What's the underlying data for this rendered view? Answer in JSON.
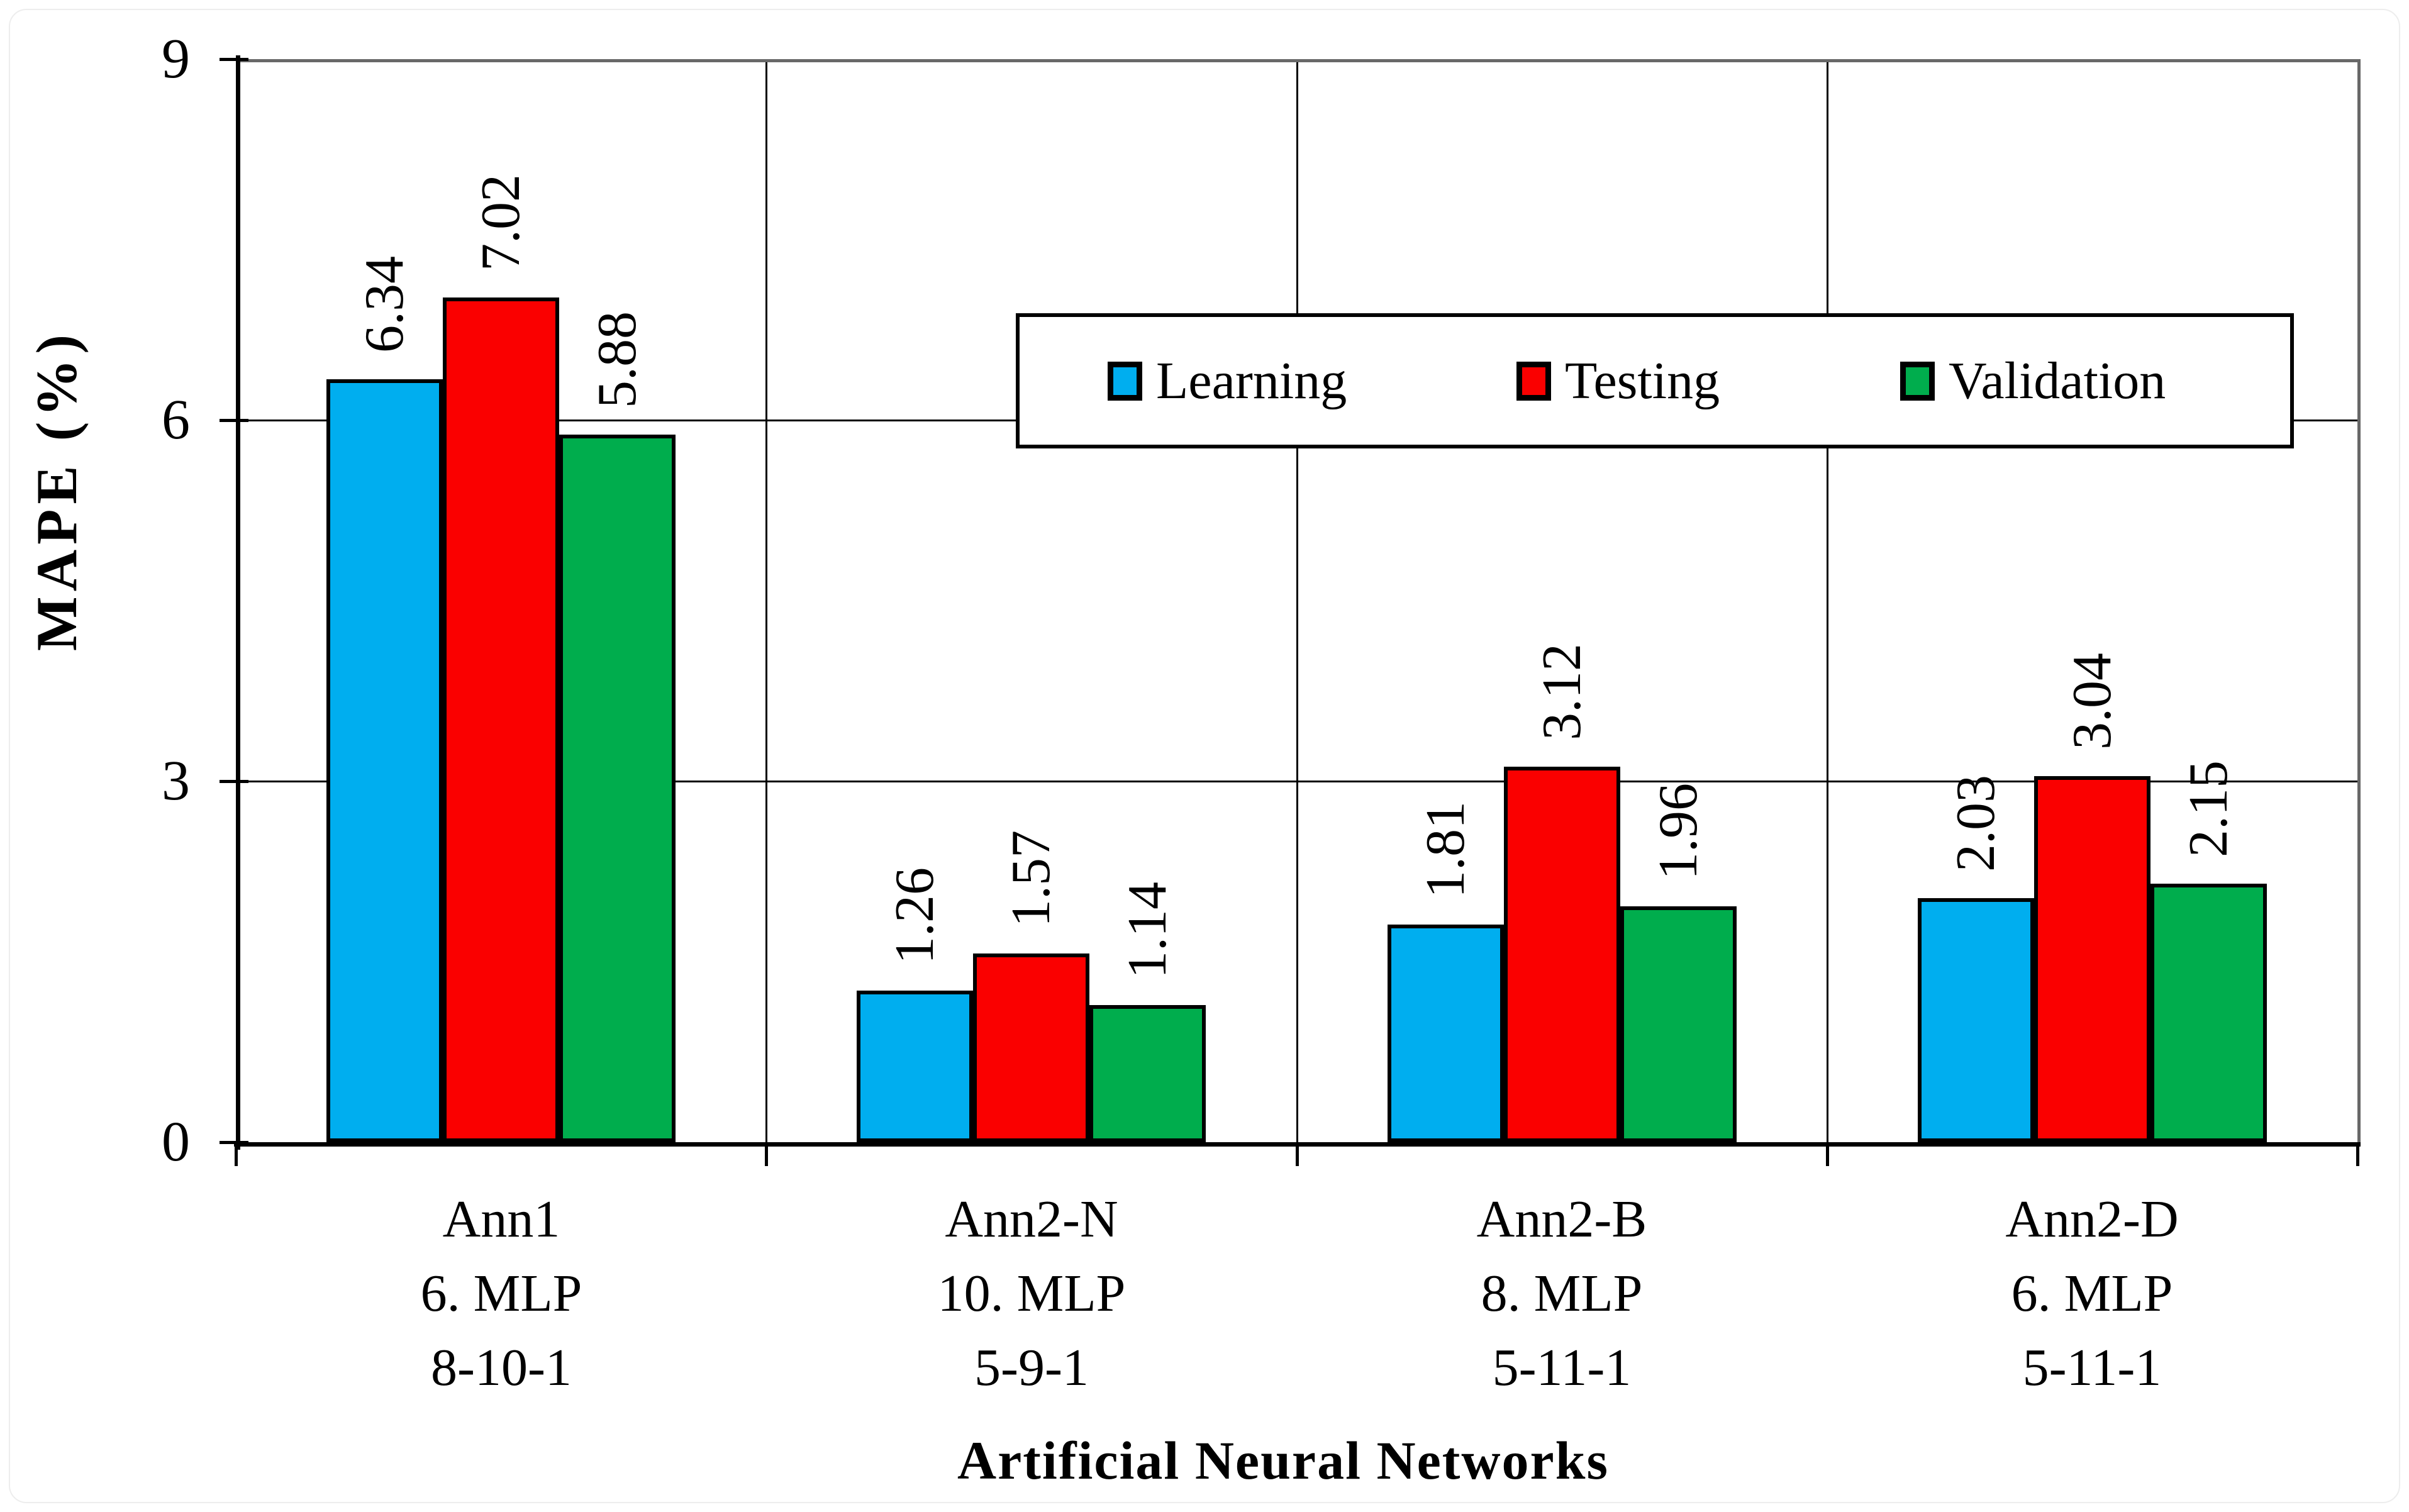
{
  "chart_data": {
    "type": "bar",
    "title": "",
    "xlabel": "Artificial Neural Networks",
    "ylabel": "MAPE (%)",
    "ylim": [
      0,
      9
    ],
    "yticks": [
      0,
      3,
      6,
      9
    ],
    "grid": "horizontal lines at 3 and 6, vertical separators between category groups",
    "legend_position": "overlay top-center inside plot",
    "value_label_format": "two decimals, rotated 90 degrees",
    "categories": [
      [
        "Ann1",
        "6. MLP",
        "8-10-1"
      ],
      [
        "Ann2-N",
        "10. MLP",
        "5-9-1"
      ],
      [
        "Ann2-B",
        "8. MLP",
        "5-11-1"
      ],
      [
        "Ann2-D",
        "6. MLP",
        "5-11-1"
      ]
    ],
    "series": [
      {
        "name": "Learning",
        "color": "#00AEEF",
        "values": [
          6.34,
          1.26,
          1.81,
          2.03
        ]
      },
      {
        "name": "Testing",
        "color": "#FA0000",
        "values": [
          7.02,
          1.57,
          3.12,
          3.04
        ]
      },
      {
        "name": "Validation",
        "color": "#00AD4D",
        "values": [
          5.88,
          1.14,
          1.96,
          2.15
        ]
      }
    ],
    "colors": {
      "bar_border": "#000000",
      "gridline": "#000000",
      "frame": "#686868",
      "background": "#ffffff"
    }
  }
}
